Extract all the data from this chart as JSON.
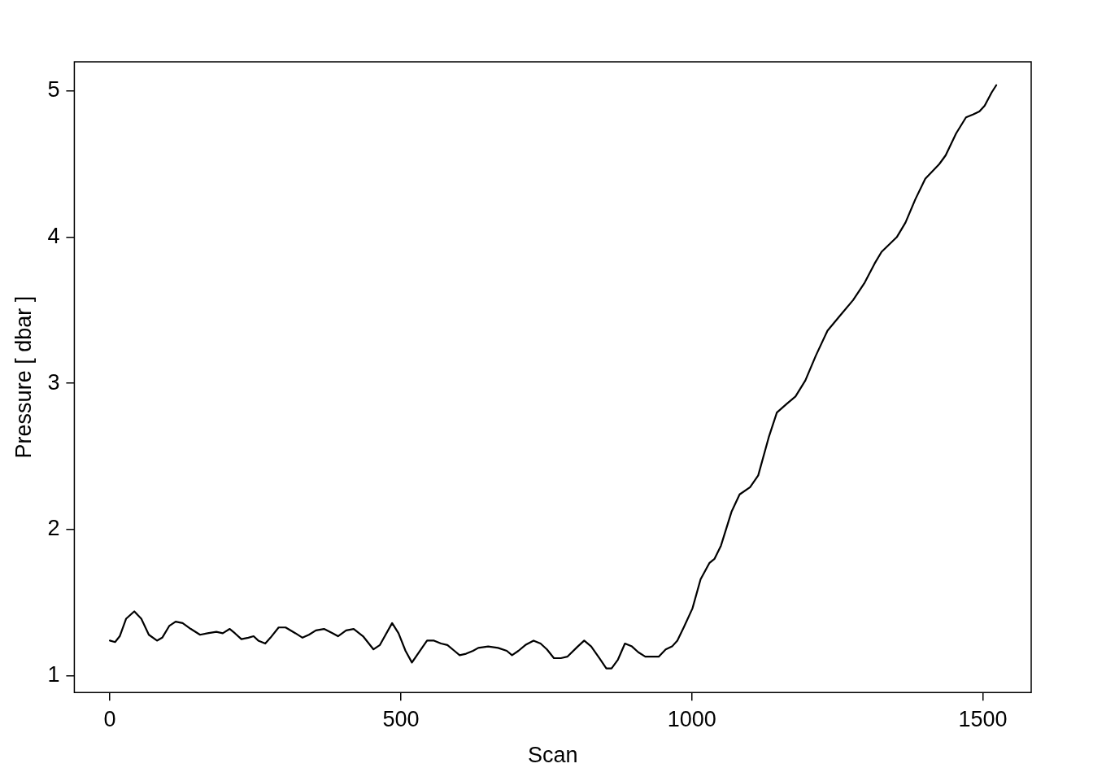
{
  "chart_data": {
    "type": "line",
    "xlabel": "Scan",
    "ylabel": "Pressure [ dbar ]",
    "x": [
      0,
      9,
      17,
      28,
      42,
      54,
      67,
      81,
      90,
      102,
      113,
      125,
      139,
      155,
      168,
      183,
      194,
      206,
      215,
      226,
      238,
      247,
      255,
      267,
      276,
      290,
      302,
      319,
      331,
      342,
      354,
      368,
      383,
      392,
      406,
      419,
      435,
      453,
      464,
      485,
      496,
      508,
      519,
      531,
      545,
      557,
      569,
      580,
      592,
      601,
      612,
      624,
      633,
      650,
      667,
      682,
      691,
      702,
      714,
      728,
      740,
      751,
      763,
      775,
      786,
      804,
      815,
      827,
      841,
      853,
      862,
      873,
      885,
      897,
      908,
      920,
      931,
      943,
      955,
      966,
      975,
      986,
      1001,
      1015,
      1030,
      1039,
      1050,
      1068,
      1082,
      1100,
      1114,
      1132,
      1146,
      1163,
      1178,
      1195,
      1213,
      1233,
      1256,
      1277,
      1297,
      1314,
      1326,
      1352,
      1367,
      1384,
      1401,
      1425,
      1436,
      1454,
      1471,
      1483,
      1494,
      1503,
      1515,
      1523
    ],
    "series": [
      {
        "color": "#000000",
        "values": [
          1.24,
          1.23,
          1.27,
          1.39,
          1.44,
          1.39,
          1.28,
          1.24,
          1.26,
          1.34,
          1.37,
          1.36,
          1.32,
          1.28,
          1.29,
          1.3,
          1.29,
          1.32,
          1.29,
          1.25,
          1.26,
          1.27,
          1.24,
          1.22,
          1.26,
          1.33,
          1.33,
          1.29,
          1.26,
          1.28,
          1.31,
          1.32,
          1.29,
          1.27,
          1.31,
          1.32,
          1.27,
          1.18,
          1.21,
          1.36,
          1.29,
          1.17,
          1.09,
          1.16,
          1.24,
          1.24,
          1.22,
          1.21,
          1.17,
          1.14,
          1.15,
          1.17,
          1.19,
          1.2,
          1.19,
          1.17,
          1.14,
          1.17,
          1.21,
          1.24,
          1.22,
          1.18,
          1.12,
          1.12,
          1.13,
          1.2,
          1.24,
          1.2,
          1.12,
          1.05,
          1.05,
          1.11,
          1.22,
          1.2,
          1.16,
          1.13,
          1.13,
          1.13,
          1.18,
          1.2,
          1.24,
          1.33,
          1.46,
          1.66,
          1.77,
          1.8,
          1.89,
          2.12,
          2.24,
          2.29,
          2.37,
          2.63,
          2.8,
          2.86,
          2.91,
          3.02,
          3.19,
          3.36,
          3.47,
          3.57,
          3.69,
          3.82,
          3.9,
          4.0,
          4.1,
          4.26,
          4.4,
          4.5,
          4.56,
          4.71,
          4.82,
          4.84,
          4.86,
          4.9,
          4.99,
          5.04
        ]
      }
    ],
    "xlim": [
      -61,
      1583
    ],
    "ylim": [
      0.885,
      5.2
    ],
    "xticks": [
      0,
      500,
      1000,
      1500
    ],
    "yticks": [
      1,
      2,
      3,
      4,
      5
    ],
    "grid": false,
    "legend": false,
    "marker": "none",
    "line_style": "solid"
  }
}
